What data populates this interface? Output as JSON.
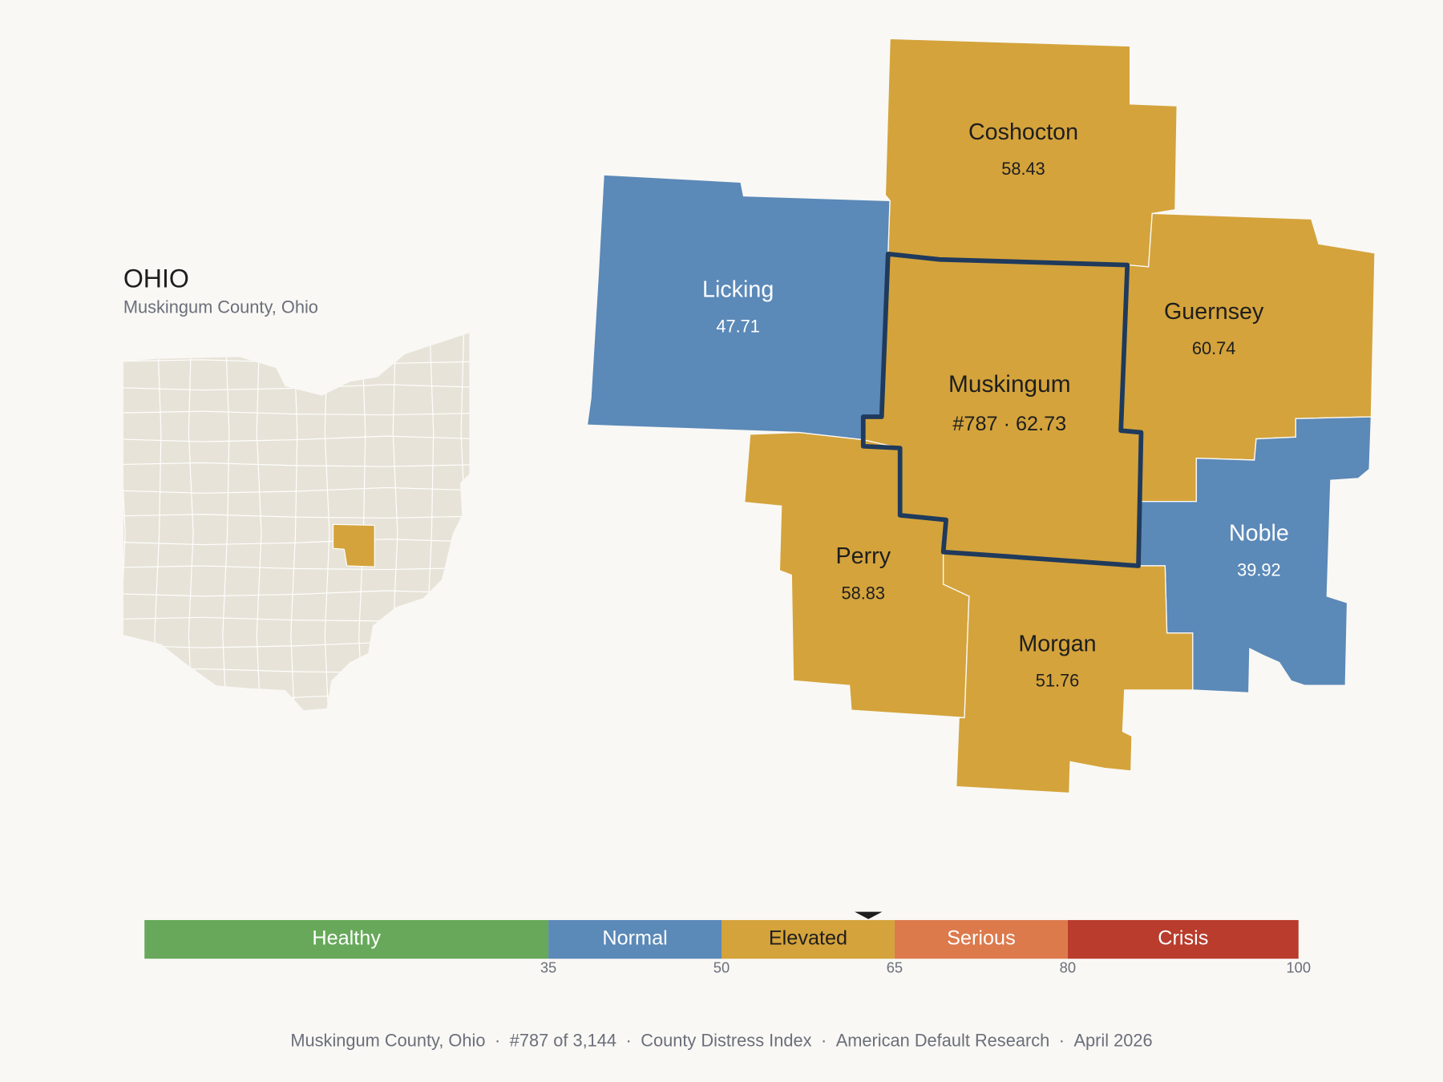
{
  "state": {
    "title": "OHIO",
    "subtitle": "Muskingum County, Ohio"
  },
  "counties": [
    {
      "name": "Coshocton",
      "value": 58.43
    },
    {
      "name": "Licking",
      "value": 47.71
    },
    {
      "name": "Guernsey",
      "value": 60.74
    },
    {
      "name": "Muskingum",
      "value": {
        "value": 62.73,
        "label": "#787 · 62.73"
      }
    },
    {
      "name": "Perry",
      "value": 58.83
    },
    {
      "name": "Noble",
      "value": 39.92
    },
    {
      "name": "Morgan",
      "value": 51.76
    }
  ],
  "focus": 3,
  "scale": {
    "lim": [
      0,
      100
    ],
    "ticks": [
      35,
      50,
      65,
      80,
      100
    ],
    "bands": [
      {
        "name": "Healthy",
        "color": "#67a85a",
        "label_color": "#ffffff"
      },
      {
        "name": "Normal",
        "color": "#5b89b8",
        "label_color": "#ffffff"
      },
      {
        "name": "Elevated",
        "color": "#d4a33b",
        "label_color": "#1e1e1e"
      },
      {
        "name": "Serious",
        "color": "#dc7a4c",
        "label_color": "#ffffff"
      },
      {
        "name": "Crisis",
        "color": "#b93c2c",
        "label_color": "#ffffff"
      }
    ]
  },
  "footer": {
    "items": [
      "Muskingum County, Ohio",
      "#787 of 3,144",
      "County Distress Index",
      "American Default Research",
      "April 2026"
    ],
    "separator": "·"
  }
}
